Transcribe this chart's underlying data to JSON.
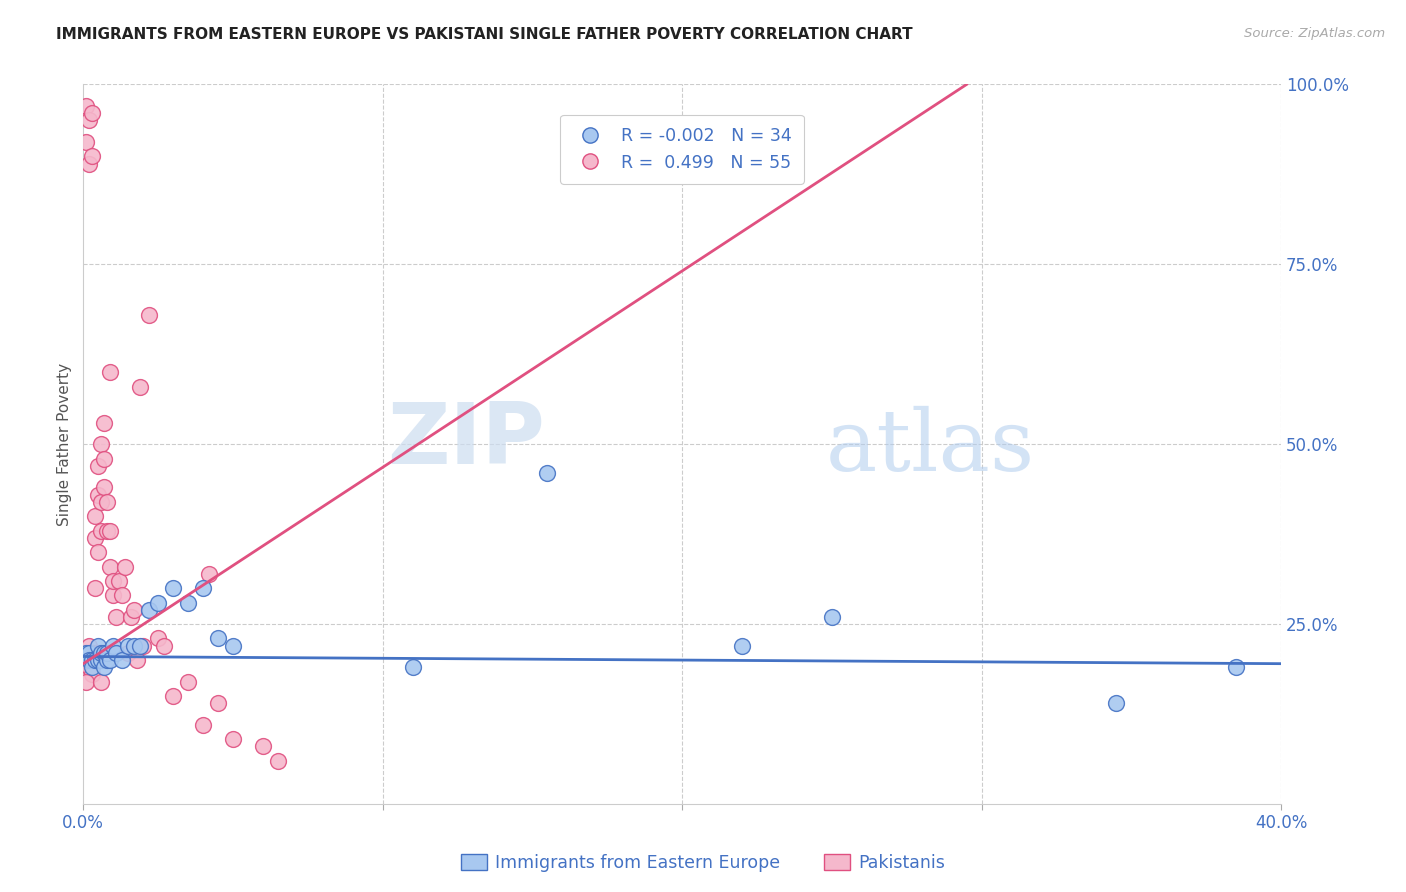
{
  "title": "IMMIGRANTS FROM EASTERN EUROPE VS PAKISTANI SINGLE FATHER POVERTY CORRELATION CHART",
  "source": "Source: ZipAtlas.com",
  "ylabel": "Single Father Poverty",
  "legend_label1": "Immigrants from Eastern Europe",
  "legend_label2": "Pakistanis",
  "R1": -0.002,
  "N1": 34,
  "R2": 0.499,
  "N2": 55,
  "color_blue": "#a8c8f0",
  "color_pink": "#f5b8cc",
  "color_blue_line": "#4472c4",
  "color_pink_line": "#e05080",
  "watermark_zip": "ZIP",
  "watermark_atlas": "atlas",
  "xlim": [
    0.0,
    0.4
  ],
  "ylim": [
    0.0,
    1.0
  ],
  "x_ticks": [
    0.0,
    0.1,
    0.2,
    0.3,
    0.4
  ],
  "x_tick_labels": [
    "0.0%",
    "",
    "",
    "",
    "40.0%"
  ],
  "y_ticks_right": [
    0.0,
    0.25,
    0.5,
    0.75,
    1.0
  ],
  "y_tick_labels_right": [
    "",
    "25.0%",
    "50.0%",
    "75.0%",
    "100.0%"
  ],
  "blue_line_x": [
    0.0,
    0.4
  ],
  "blue_line_y": [
    0.205,
    0.195
  ],
  "pink_line_x": [
    0.0,
    0.295
  ],
  "pink_line_y": [
    0.195,
    1.0
  ],
  "blue_x": [
    0.001,
    0.002,
    0.002,
    0.003,
    0.003,
    0.004,
    0.005,
    0.005,
    0.006,
    0.006,
    0.007,
    0.007,
    0.008,
    0.008,
    0.009,
    0.01,
    0.011,
    0.013,
    0.015,
    0.017,
    0.019,
    0.022,
    0.025,
    0.03,
    0.035,
    0.04,
    0.045,
    0.05,
    0.11,
    0.155,
    0.22,
    0.25,
    0.345,
    0.385
  ],
  "blue_y": [
    0.21,
    0.21,
    0.2,
    0.2,
    0.19,
    0.2,
    0.22,
    0.2,
    0.2,
    0.21,
    0.19,
    0.21,
    0.2,
    0.21,
    0.2,
    0.22,
    0.21,
    0.2,
    0.22,
    0.22,
    0.22,
    0.27,
    0.28,
    0.3,
    0.28,
    0.3,
    0.23,
    0.22,
    0.19,
    0.46,
    0.22,
    0.26,
    0.14,
    0.19
  ],
  "pink_x": [
    0.001,
    0.001,
    0.002,
    0.002,
    0.003,
    0.003,
    0.003,
    0.004,
    0.004,
    0.004,
    0.005,
    0.005,
    0.005,
    0.006,
    0.006,
    0.006,
    0.007,
    0.007,
    0.007,
    0.008,
    0.008,
    0.009,
    0.009,
    0.009,
    0.01,
    0.01,
    0.011,
    0.012,
    0.013,
    0.014,
    0.015,
    0.016,
    0.017,
    0.018,
    0.019,
    0.02,
    0.022,
    0.025,
    0.027,
    0.03,
    0.035,
    0.04,
    0.042,
    0.045,
    0.05,
    0.06,
    0.065,
    0.001,
    0.002,
    0.002,
    0.003,
    0.004,
    0.001,
    0.005,
    0.006
  ],
  "pink_y": [
    0.97,
    0.92,
    0.95,
    0.89,
    0.96,
    0.9,
    0.2,
    0.37,
    0.4,
    0.3,
    0.43,
    0.47,
    0.35,
    0.5,
    0.42,
    0.38,
    0.44,
    0.48,
    0.53,
    0.38,
    0.42,
    0.33,
    0.38,
    0.6,
    0.29,
    0.31,
    0.26,
    0.31,
    0.29,
    0.33,
    0.21,
    0.26,
    0.27,
    0.2,
    0.58,
    0.22,
    0.68,
    0.23,
    0.22,
    0.15,
    0.17,
    0.11,
    0.32,
    0.14,
    0.09,
    0.08,
    0.06,
    0.2,
    0.19,
    0.22,
    0.18,
    0.21,
    0.17,
    0.21,
    0.17
  ]
}
